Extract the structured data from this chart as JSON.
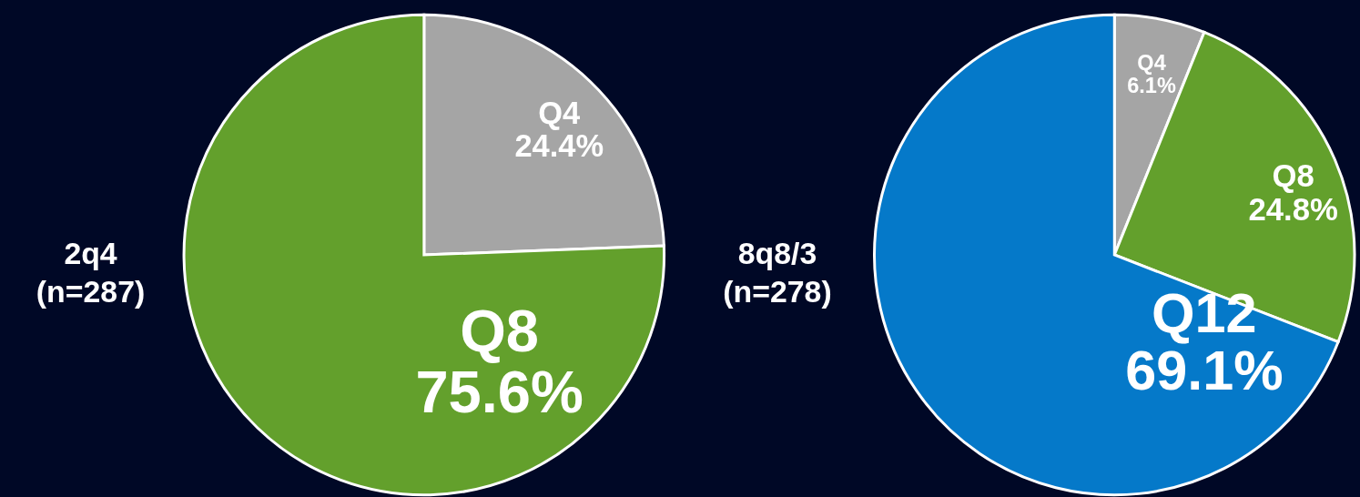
{
  "chart_data": [
    {
      "type": "pie",
      "title": "2q4\n(n=287)",
      "categories": [
        "Q4",
        "Q8"
      ],
      "values": [
        24.4,
        75.6
      ],
      "colors": [
        "#a5a5a5",
        "#63a02c"
      ],
      "value_labels": [
        "24.4%",
        "75.6%"
      ]
    },
    {
      "type": "pie",
      "title": "8q8/3\n(n=278)",
      "categories": [
        "Q4",
        "Q8",
        "Q12"
      ],
      "values": [
        6.1,
        24.8,
        69.1
      ],
      "colors": [
        "#a5a5a5",
        "#63a02c",
        "#0579c9"
      ],
      "value_labels": [
        "6.1%",
        "24.8%",
        "69.1%"
      ]
    }
  ]
}
